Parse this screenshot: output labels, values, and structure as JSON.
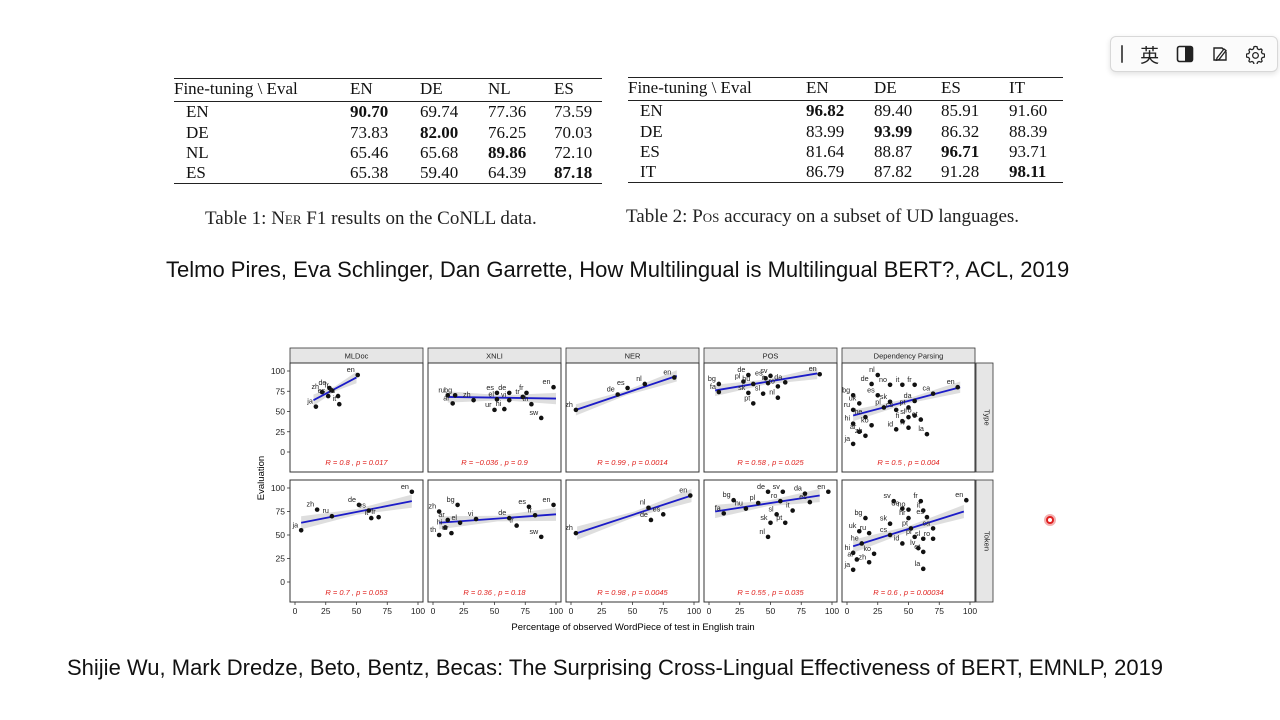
{
  "toolbar": {
    "icons": [
      "grip-icon",
      "language-icon",
      "split-view-icon",
      "edit-icon",
      "gear-icon"
    ],
    "language_label": "英"
  },
  "table1": {
    "header": [
      "Fine-tuning \\ Eval",
      "EN",
      "DE",
      "NL",
      "ES"
    ],
    "rows": [
      {
        "label": "EN",
        "values": [
          "90.70",
          "69.74",
          "77.36",
          "73.59"
        ],
        "bold": 0
      },
      {
        "label": "DE",
        "values": [
          "73.83",
          "82.00",
          "76.25",
          "70.03"
        ],
        "bold": 1
      },
      {
        "label": "NL",
        "values": [
          "65.46",
          "65.68",
          "89.86",
          "72.10"
        ],
        "bold": 2
      },
      {
        "label": "ES",
        "values": [
          "65.38",
          "59.40",
          "64.39",
          "87.18"
        ],
        "bold": 3
      }
    ],
    "caption_prefix": "Table 1: ",
    "caption_sc": "Ner",
    "caption_rest": " F1 results on the CoNLL data."
  },
  "table2": {
    "header": [
      "Fine-tuning \\ Eval",
      "EN",
      "DE",
      "ES",
      "IT"
    ],
    "rows": [
      {
        "label": "EN",
        "values": [
          "96.82",
          "89.40",
          "85.91",
          "91.60"
        ],
        "bold": 0
      },
      {
        "label": "DE",
        "values": [
          "83.99",
          "93.99",
          "86.32",
          "88.39"
        ],
        "bold": 1
      },
      {
        "label": "ES",
        "values": [
          "81.64",
          "88.87",
          "96.71",
          "93.71"
        ],
        "bold": 2
      },
      {
        "label": "IT",
        "values": [
          "86.79",
          "87.82",
          "91.28",
          "98.11"
        ],
        "bold": 3
      }
    ],
    "caption_prefix": "Table 2: ",
    "caption_sc": "Pos",
    "caption_rest": " accuracy on a subset of UD languages."
  },
  "citation1": "Telmo Pires, Eva Schlinger, Dan Garrette, How Multilingual is Multilingual BERT?, ACL, 2019",
  "citation2": "Shijie Wu, Mark Dredze, Beto, Bentz, Becas: The Surprising Cross-Lingual Effectiveness of BERT, EMNLP, 2019",
  "chart_data": {
    "type": "scatter",
    "xlabel": "Percentage of observed WordPiece of test in English train",
    "ylabel": "Evaluation",
    "xlim": [
      0,
      100
    ],
    "ylim": [
      0,
      100
    ],
    "xticks": [
      0,
      25,
      50,
      75,
      100
    ],
    "yticks": [
      0,
      25,
      50,
      75,
      100
    ],
    "columns": [
      "MLDoc",
      "XNLI",
      "NER",
      "POS",
      "Dependency Parsing"
    ],
    "rows": [
      "Type",
      "Token"
    ],
    "colors": {
      "fit_line": "#1c1cc8",
      "ribbon": "#d3d3d3",
      "stats": "#e0201c",
      "points": "#111111"
    },
    "panels": [
      {
        "row": 0,
        "col": 0,
        "R": "0.8",
        "p": "0.017",
        "fit": [
          [
            15,
            64
          ],
          [
            50,
            92
          ]
        ],
        "points": [
          [
            "en",
            51,
            95
          ],
          [
            "de",
            28,
            79
          ],
          [
            "zh",
            22,
            74
          ],
          [
            "fr",
            30,
            76
          ],
          [
            "es",
            27,
            69
          ],
          [
            "ru",
            35,
            69
          ],
          [
            "it",
            36,
            59
          ],
          [
            "ja",
            17,
            56
          ]
        ]
      },
      {
        "row": 0,
        "col": 1,
        "R": "−0.036",
        "p": "0.9",
        "fit": [
          [
            12,
            68
          ],
          [
            100,
            66
          ]
        ],
        "points": [
          [
            "ru",
            12,
            70
          ],
          [
            "bg",
            18,
            70
          ],
          [
            "ar",
            16,
            60
          ],
          [
            "zh",
            33,
            64
          ],
          [
            "es",
            52,
            73
          ],
          [
            "de",
            62,
            73
          ],
          [
            "fr",
            76,
            73
          ],
          [
            "en",
            98,
            80
          ],
          [
            "el",
            52,
            65
          ],
          [
            "tr",
            73,
            68
          ],
          [
            "vi",
            62,
            64
          ],
          [
            "th",
            80,
            59
          ],
          [
            "ur",
            50,
            52
          ],
          [
            "hi",
            58,
            53
          ],
          [
            "sw",
            88,
            42
          ]
        ]
      },
      {
        "row": 0,
        "col": 2,
        "R": "0.99",
        "p": "0.0014",
        "fit": [
          [
            4,
            52
          ],
          [
            86,
            94
          ]
        ],
        "points": [
          [
            "en",
            84,
            92
          ],
          [
            "nl",
            60,
            84
          ],
          [
            "es",
            46,
            79
          ],
          [
            "de",
            38,
            71
          ],
          [
            "zh",
            4,
            52
          ]
        ]
      },
      {
        "row": 0,
        "col": 3,
        "R": "0.58",
        "p": "0.025",
        "fit": [
          [
            5,
            76
          ],
          [
            88,
            97
          ]
        ],
        "points": [
          [
            "en",
            90,
            96
          ],
          [
            "de",
            32,
            95
          ],
          [
            "sv",
            50,
            94
          ],
          [
            "es",
            46,
            91
          ],
          [
            "pl",
            28,
            87
          ],
          [
            "da",
            62,
            86
          ],
          [
            "bg",
            8,
            84
          ],
          [
            "hu",
            36,
            84
          ],
          [
            "it",
            48,
            85
          ],
          [
            "ro",
            56,
            81
          ],
          [
            "fa",
            8,
            74
          ],
          [
            "sk",
            32,
            73
          ],
          [
            "sl",
            44,
            72
          ],
          [
            "nl",
            56,
            67
          ],
          [
            "pt",
            36,
            60
          ]
        ]
      },
      {
        "row": 0,
        "col": 4,
        "R": "0.5",
        "p": "0.004",
        "fit": [
          [
            5,
            45
          ],
          [
            92,
            80
          ]
        ],
        "points": [
          [
            "en",
            90,
            80
          ],
          [
            "nl",
            25,
            95
          ],
          [
            "de",
            20,
            84
          ],
          [
            "no",
            35,
            83
          ],
          [
            "it",
            45,
            83
          ],
          [
            "fr",
            55,
            83
          ],
          [
            "ca",
            70,
            72
          ],
          [
            "es",
            25,
            70
          ],
          [
            "bg",
            5,
            70
          ],
          [
            "uk",
            10,
            60
          ],
          [
            "sk",
            35,
            62
          ],
          [
            "da",
            55,
            63
          ],
          [
            "ru",
            5,
            52
          ],
          [
            "pl",
            30,
            55
          ],
          [
            "pt",
            50,
            55
          ],
          [
            "he",
            15,
            43
          ],
          [
            "cs",
            40,
            52
          ],
          [
            "ro",
            55,
            45
          ],
          [
            "sl",
            50,
            43
          ],
          [
            "et",
            60,
            40
          ],
          [
            "fi",
            45,
            38
          ],
          [
            "hi",
            5,
            35
          ],
          [
            "ko",
            20,
            33
          ],
          [
            "lv",
            50,
            30
          ],
          [
            "id",
            40,
            28
          ],
          [
            "ar",
            10,
            25
          ],
          [
            "zh",
            15,
            20
          ],
          [
            "la",
            65,
            22
          ],
          [
            "ja",
            5,
            10
          ]
        ]
      },
      {
        "row": 1,
        "col": 0,
        "R": "0.7",
        "p": "0.053",
        "fit": [
          [
            5,
            63
          ],
          [
            95,
            86
          ]
        ],
        "points": [
          [
            "en",
            95,
            96
          ],
          [
            "zh",
            18,
            77
          ],
          [
            "de",
            52,
            82
          ],
          [
            "ja",
            5,
            55
          ],
          [
            "ru",
            30,
            70
          ],
          [
            "es",
            60,
            76
          ],
          [
            "it",
            62,
            68
          ],
          [
            "fr",
            68,
            69
          ]
        ]
      },
      {
        "row": 1,
        "col": 1,
        "R": "0.36",
        "p": "0.18",
        "fit": [
          [
            5,
            63
          ],
          [
            100,
            72
          ]
        ],
        "points": [
          [
            "zh",
            5,
            75
          ],
          [
            "bg",
            20,
            82
          ],
          [
            "ar",
            12,
            66
          ],
          [
            "hi",
            10,
            58
          ],
          [
            "el",
            22,
            63
          ],
          [
            "vi",
            35,
            67
          ],
          [
            "es",
            78,
            80
          ],
          [
            "de",
            62,
            68
          ],
          [
            "fr",
            83,
            71
          ],
          [
            "en",
            98,
            82
          ],
          [
            "tr",
            68,
            60
          ],
          [
            "th",
            5,
            50
          ],
          [
            "ur",
            15,
            52
          ],
          [
            "sw",
            88,
            48
          ]
        ]
      },
      {
        "row": 1,
        "col": 2,
        "R": "0.98",
        "p": "0.0045",
        "fit": [
          [
            5,
            52
          ],
          [
            98,
            92
          ]
        ],
        "points": [
          [
            "en",
            97,
            92
          ],
          [
            "nl",
            63,
            79
          ],
          [
            "es",
            75,
            72
          ],
          [
            "de",
            65,
            66
          ],
          [
            "zh",
            4,
            52
          ]
        ]
      },
      {
        "row": 1,
        "col": 3,
        "R": "0.55",
        "p": "0.035",
        "fit": [
          [
            5,
            75
          ],
          [
            90,
            92
          ]
        ],
        "points": [
          [
            "en",
            97,
            96
          ],
          [
            "de",
            48,
            96
          ],
          [
            "sv",
            60,
            96
          ],
          [
            "da",
            78,
            94
          ],
          [
            "bg",
            20,
            87
          ],
          [
            "pl",
            40,
            84
          ],
          [
            "ro",
            58,
            86
          ],
          [
            "es",
            82,
            85
          ],
          [
            "hu",
            30,
            78
          ],
          [
            "fa",
            12,
            73
          ],
          [
            "it",
            68,
            76
          ],
          [
            "sl",
            55,
            72
          ],
          [
            "sk",
            50,
            63
          ],
          [
            "pt",
            62,
            63
          ],
          [
            "nl",
            48,
            48
          ]
        ]
      },
      {
        "row": 1,
        "col": 4,
        "R": "0.6",
        "p": "0.00034",
        "fit": [
          [
            5,
            38
          ],
          [
            95,
            75
          ]
        ],
        "points": [
          [
            "en",
            97,
            87
          ],
          [
            "sv",
            38,
            86
          ],
          [
            "fr",
            60,
            86
          ],
          [
            "de",
            45,
            78
          ],
          [
            "no",
            50,
            77
          ],
          [
            "it",
            62,
            76
          ],
          [
            "bg",
            15,
            68
          ],
          [
            "hr",
            50,
            68
          ],
          [
            "es",
            65,
            69
          ],
          [
            "sk",
            35,
            62
          ],
          [
            "pt",
            52,
            57
          ],
          [
            "ca",
            70,
            57
          ],
          [
            "uk",
            10,
            54
          ],
          [
            "ru",
            18,
            52
          ],
          [
            "cs",
            35,
            50
          ],
          [
            "pl",
            55,
            48
          ],
          [
            "sl",
            62,
            46
          ],
          [
            "ro",
            70,
            46
          ],
          [
            "he",
            12,
            41
          ],
          [
            "id",
            45,
            41
          ],
          [
            "lv",
            58,
            36
          ],
          [
            "et",
            62,
            32
          ],
          [
            "hi",
            5,
            31
          ],
          [
            "ko",
            22,
            30
          ],
          [
            "ar",
            8,
            24
          ],
          [
            "zh",
            18,
            21
          ],
          [
            "la",
            62,
            14
          ],
          [
            "ja",
            5,
            13
          ]
        ]
      }
    ]
  }
}
